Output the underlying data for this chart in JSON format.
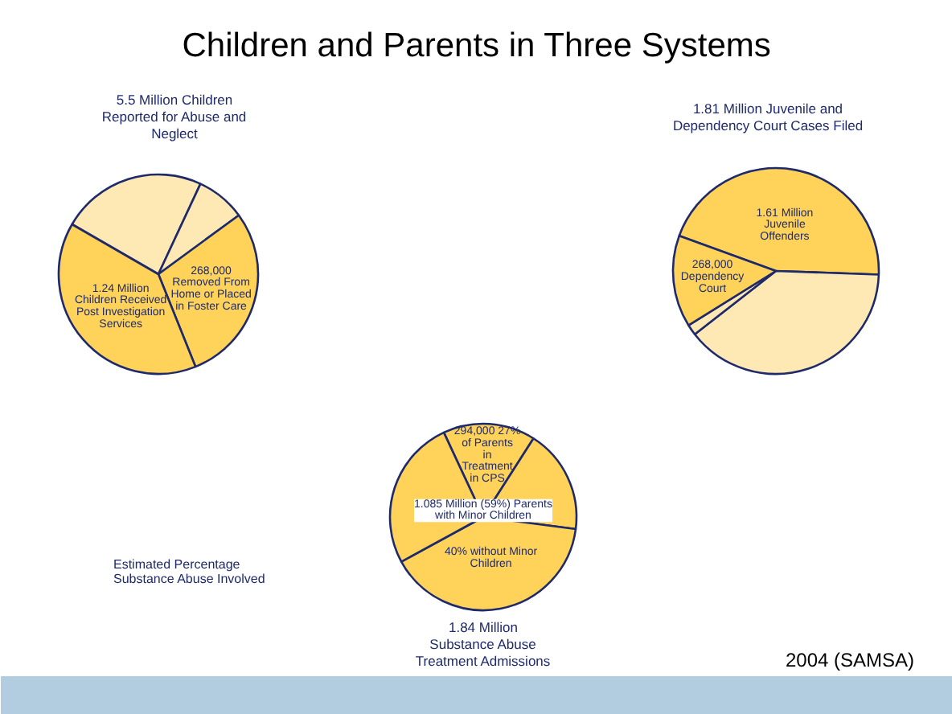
{
  "chart_data": [
    {
      "type": "pie",
      "title": "5.5 Million Children Reported for Abuse and Neglect",
      "categories": [
        null,
        null,
        "268,000 Removed From Home or Placed in Foster Care",
        "1.24 Million Children Received Post Investigation Services"
      ],
      "values": [
        23.6,
        8,
        29,
        39.4
      ],
      "colors": [
        "#fee9b4",
        "#fee9b4",
        "#ffd35a",
        "#ffd35a"
      ]
    },
    {
      "type": "pie",
      "title": "1.81 Million Juvenile and Dependency Court Cases Filed",
      "categories": [
        "1.61 Million Juvenile Offenders",
        null,
        null,
        "268,000 Dependency Court"
      ],
      "values": [
        45,
        38.9,
        1.7,
        14.4
      ],
      "colors": [
        "#ffd35a",
        "#fee9b4",
        "#fee9b4",
        "#ffd35a"
      ]
    },
    {
      "type": "pie",
      "title": "1.84 Million Substance Abuse Treatment Admissions",
      "categories": [
        "294,000 27% of Parents in Treatment in CPS",
        null,
        "40% without Minor Children",
        null
      ],
      "values": [
        16,
        18,
        40,
        26
      ],
      "colors": [
        "#ffd35a",
        "#ffd35a",
        "#ffd35a",
        "#ffd35a"
      ],
      "annotations": [
        "1.085 Million (59%) Parents with Minor Children"
      ]
    },
    {
      "type": "other",
      "title": "Children and Parents in Three Systems",
      "annotations": [
        "Estimated Percentage Substance Abuse Involved",
        "2004 (SAMSA)"
      ]
    }
  ]
}
